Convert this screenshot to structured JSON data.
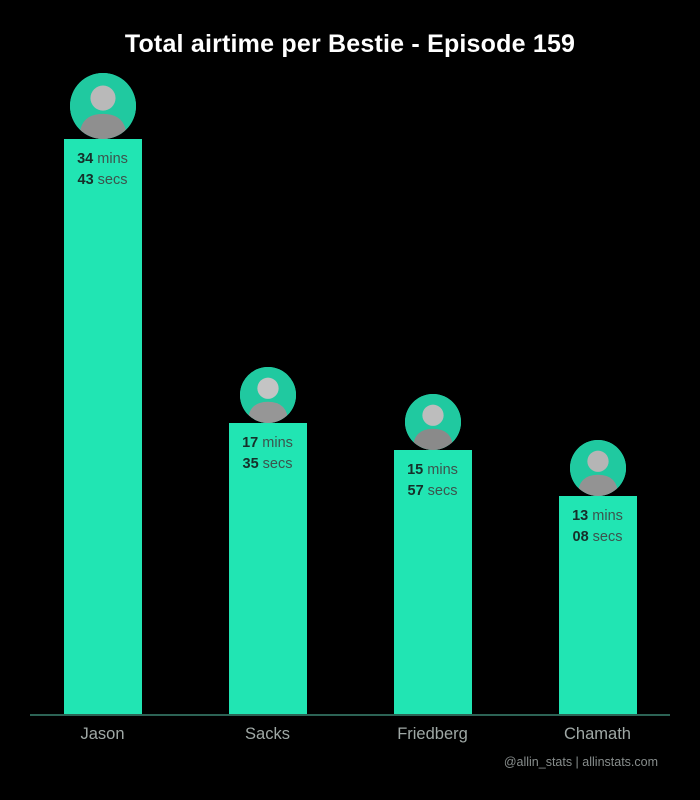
{
  "title": "Total airtime per Bestie - Episode 159",
  "footer": "@allin_stats | allinstats.com",
  "labels": {
    "mins_unit": "mins",
    "secs_unit": "secs"
  },
  "colors": {
    "background": "#000000",
    "bar": "#21e5b3",
    "title_text": "#ffffff",
    "category_text": "#9fa8a5",
    "value_text": "#16302a",
    "axis_line": "#2c6355"
  },
  "chart_data": {
    "type": "bar",
    "title": "Total airtime per Bestie - Episode 159",
    "xlabel": "",
    "ylabel": "",
    "legend": false,
    "grid": false,
    "categories": [
      "Jason",
      "Sacks",
      "Friedberg",
      "Chamath"
    ],
    "values_seconds": [
      2083,
      1055,
      957,
      788
    ],
    "bars": [
      {
        "label": "Jason",
        "mins": "34",
        "secs": "43"
      },
      {
        "label": "Sacks",
        "mins": "17",
        "secs": "35"
      },
      {
        "label": "Friedberg",
        "mins": "15",
        "secs": "57"
      },
      {
        "label": "Chamath",
        "mins": "13",
        "secs": "08"
      }
    ]
  }
}
